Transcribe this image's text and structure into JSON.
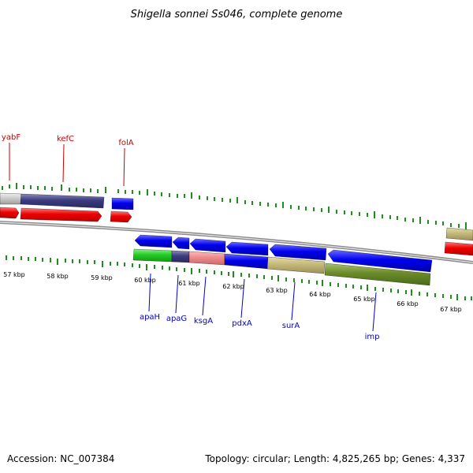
{
  "title": "Shigella sonnei Ss046, complete genome",
  "footer": {
    "accession": "Accession: NC_007384",
    "summary": "Topology: circular; Length: 4,825,265 bp; Genes: 4,337"
  },
  "colors": {
    "forward_label": "#cc0000",
    "reverse_label": "#0000cc",
    "tick": "#228b22"
  },
  "kbp_labels": [
    "57 kbp",
    "58 kbp",
    "59 kbp",
    "60 kbp",
    "61 kbp",
    "62 kbp",
    "63 kbp",
    "64 kbp",
    "65 kbp",
    "66 kbp",
    "67 kbp"
  ],
  "forward_genes": [
    "yabF",
    "kefC",
    "folA"
  ],
  "reverse_genes": [
    "apaH",
    "apaG",
    "ksgA",
    "pdxA",
    "surA",
    "imp"
  ]
}
